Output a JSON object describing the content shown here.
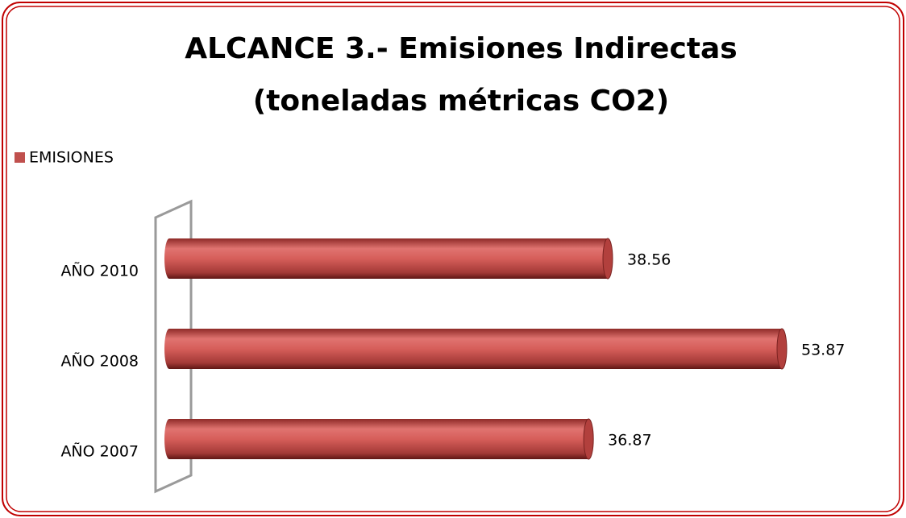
{
  "chart_data": {
    "type": "bar",
    "orientation": "horizontal",
    "title": [
      "ALCANCE 3.- Emisiones Indirectas",
      "(toneladas métricas CO2)"
    ],
    "categories": [
      "AÑO 2007",
      "AÑO 2008",
      "AÑO 2010"
    ],
    "series": [
      {
        "name": "EMISIONES",
        "color": "#c0504d",
        "values": [
          36.87,
          53.87,
          38.56
        ]
      }
    ],
    "legend": "top-left"
  }
}
